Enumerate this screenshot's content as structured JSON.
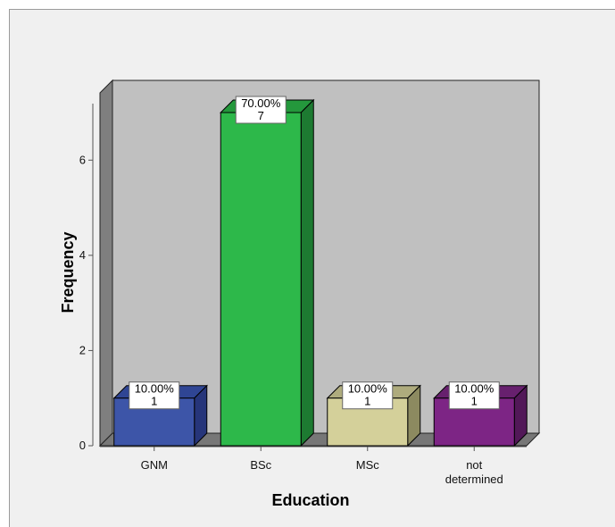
{
  "chart_data": {
    "type": "bar",
    "xlabel": "Education",
    "ylabel": "Frequency",
    "categories": [
      [
        "GNM"
      ],
      [
        "BSc"
      ],
      [
        "MSc"
      ],
      [
        "not",
        "determined"
      ]
    ],
    "values": [
      1,
      7,
      1,
      1
    ],
    "percent_labels": [
      "10.00%",
      "70.00%",
      "10.00%",
      "10.00%"
    ],
    "count_labels": [
      "1",
      "7",
      "1",
      "1"
    ],
    "y_ticks": [
      0,
      2,
      4,
      6
    ],
    "ylim": [
      0,
      7
    ],
    "grid": false,
    "colors": {
      "front": [
        "#3d55a8",
        "#2db84a",
        "#d4d09a",
        "#7d2585"
      ],
      "side": [
        "#26357a",
        "#1d7a31",
        "#8c8a60",
        "#521858"
      ],
      "top": [
        "#2f4594",
        "#24983c",
        "#aeab7d",
        "#67206e"
      ],
      "plot_back": "#c0c0c0",
      "plot_wall": "#7f7f7f",
      "plot_floor": "#777777",
      "frame": "#f0f0f0"
    }
  }
}
